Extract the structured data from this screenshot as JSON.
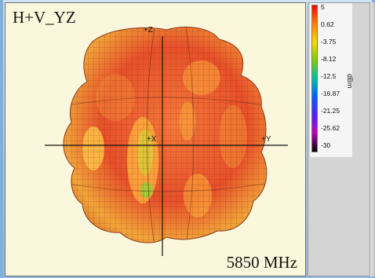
{
  "plot": {
    "title": "H+V_YZ",
    "frequency": "5850 MHz",
    "axes": {
      "z_label": "+Z",
      "x_label": "+X",
      "y_label": "+Y"
    }
  },
  "legend": {
    "unit": "dBm",
    "ticks": [
      "5",
      "0.62",
      "-3.75",
      "-8.12",
      "-12.5",
      "-16.87",
      "-21.25",
      "-25.62",
      "-30"
    ]
  },
  "colors": {
    "pattern_main": "#f05a2a",
    "pattern_highlight": "#ffb23c",
    "pattern_low": "#9ccc3a",
    "background": "#fbf7dc"
  }
}
